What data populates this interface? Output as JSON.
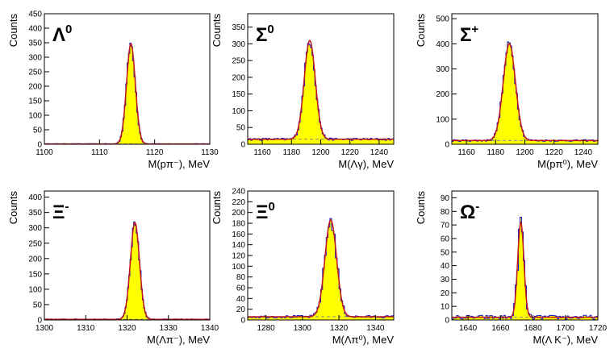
{
  "chart_data": [
    {
      "type": "histogram",
      "title": "Λ0",
      "title_base": "Λ",
      "title_sup": "0",
      "xlabel": "M(pπ⁻), MeV",
      "ylabel": "Counts",
      "xlim": [
        1100,
        1130
      ],
      "ylim": [
        0,
        450
      ],
      "xticks": [
        1100,
        1110,
        1120,
        1130
      ],
      "yticks": [
        0,
        50,
        100,
        150,
        200,
        250,
        300,
        350,
        400,
        450
      ],
      "peak": {
        "mean": 1115.7,
        "sigma": 0.8,
        "amplitude": 345
      },
      "background": 1,
      "bin_width": 0.25,
      "colors": {
        "fill": "#ffff00",
        "outline": "#1a1ad0",
        "fit": "#c01818",
        "bg": "#888888"
      }
    },
    {
      "type": "histogram",
      "title": "Σ0",
      "title_base": "Σ",
      "title_sup": "0",
      "xlabel": "M(Λγ), MeV",
      "ylabel": "Counts",
      "xlim": [
        1150,
        1250
      ],
      "ylim": [
        0,
        390
      ],
      "xticks": [
        1160,
        1180,
        1200,
        1220,
        1240
      ],
      "yticks": [
        0,
        50,
        100,
        150,
        200,
        250,
        300,
        350
      ],
      "peak": {
        "mean": 1192.5,
        "sigma": 3.8,
        "amplitude": 295
      },
      "background": 15,
      "bin_width": 1.0,
      "colors": {
        "fill": "#ffff00",
        "outline": "#1a1ad0",
        "fit": "#c01818",
        "bg": "#888888"
      }
    },
    {
      "type": "histogram",
      "title": "Σ+",
      "title_base": "Σ",
      "title_sup": "+",
      "xlabel": "M(pπ⁰), MeV",
      "ylabel": "Counts",
      "xlim": [
        1150,
        1250
      ],
      "ylim": [
        0,
        520
      ],
      "xticks": [
        1160,
        1180,
        1200,
        1220,
        1240
      ],
      "yticks": [
        0,
        100,
        200,
        300,
        400,
        500
      ],
      "peak": {
        "mean": 1189.4,
        "sigma": 4.2,
        "amplitude": 385
      },
      "background": 15,
      "bin_width": 1.0,
      "colors": {
        "fill": "#ffff00",
        "outline": "#1a1ad0",
        "fit": "#c01818",
        "bg": "#888888"
      }
    },
    {
      "type": "histogram",
      "title": "Ξ-",
      "title_base": "Ξ",
      "title_sup": "-",
      "xlabel": "M(Λπ⁻), MeV",
      "ylabel": "Counts",
      "xlim": [
        1300,
        1340
      ],
      "ylim": [
        0,
        420
      ],
      "xticks": [
        1300,
        1310,
        1320,
        1330,
        1340
      ],
      "yticks": [
        0,
        50,
        100,
        150,
        200,
        250,
        300,
        350,
        400
      ],
      "peak": {
        "mean": 1321.9,
        "sigma": 1.1,
        "amplitude": 315
      },
      "background": 2,
      "bin_width": 0.3,
      "colors": {
        "fill": "#ffff00",
        "outline": "#1a1ad0",
        "fit": "#c01818",
        "bg": "#888888"
      }
    },
    {
      "type": "histogram",
      "title": "Ξ0",
      "title_base": "Ξ",
      "title_sup": "0",
      "xlabel": "M(Λπ⁰), MeV",
      "ylabel": "Counts",
      "xlim": [
        1270,
        1350
      ],
      "ylim": [
        0,
        240
      ],
      "xticks": [
        1280,
        1300,
        1320,
        1340
      ],
      "yticks": [
        0,
        20,
        40,
        60,
        80,
        100,
        120,
        140,
        160,
        180,
        200,
        220,
        240
      ],
      "peak": {
        "mean": 1315.5,
        "sigma": 3.2,
        "amplitude": 180
      },
      "background": 6,
      "bin_width": 1.0,
      "colors": {
        "fill": "#ffff00",
        "outline": "#1a1ad0",
        "fit": "#c01818",
        "bg": "#888888"
      }
    },
    {
      "type": "histogram",
      "title": "Ω-",
      "title_base": "Ω",
      "title_sup": "-",
      "xlabel": "M(Λ K⁻), MeV",
      "ylabel": "Counts",
      "xlim": [
        1630,
        1720
      ],
      "ylim": [
        0,
        95
      ],
      "xticks": [
        1640,
        1660,
        1680,
        1700,
        1720
      ],
      "yticks": [
        0,
        10,
        20,
        30,
        40,
        50,
        60,
        70,
        80,
        90
      ],
      "peak": {
        "mean": 1672.5,
        "sigma": 1.9,
        "amplitude": 70
      },
      "background": 2,
      "bin_width": 1.0,
      "colors": {
        "fill": "#ffff00",
        "outline": "#1a1ad0",
        "fit": "#c01818",
        "bg": "#888888"
      }
    }
  ]
}
